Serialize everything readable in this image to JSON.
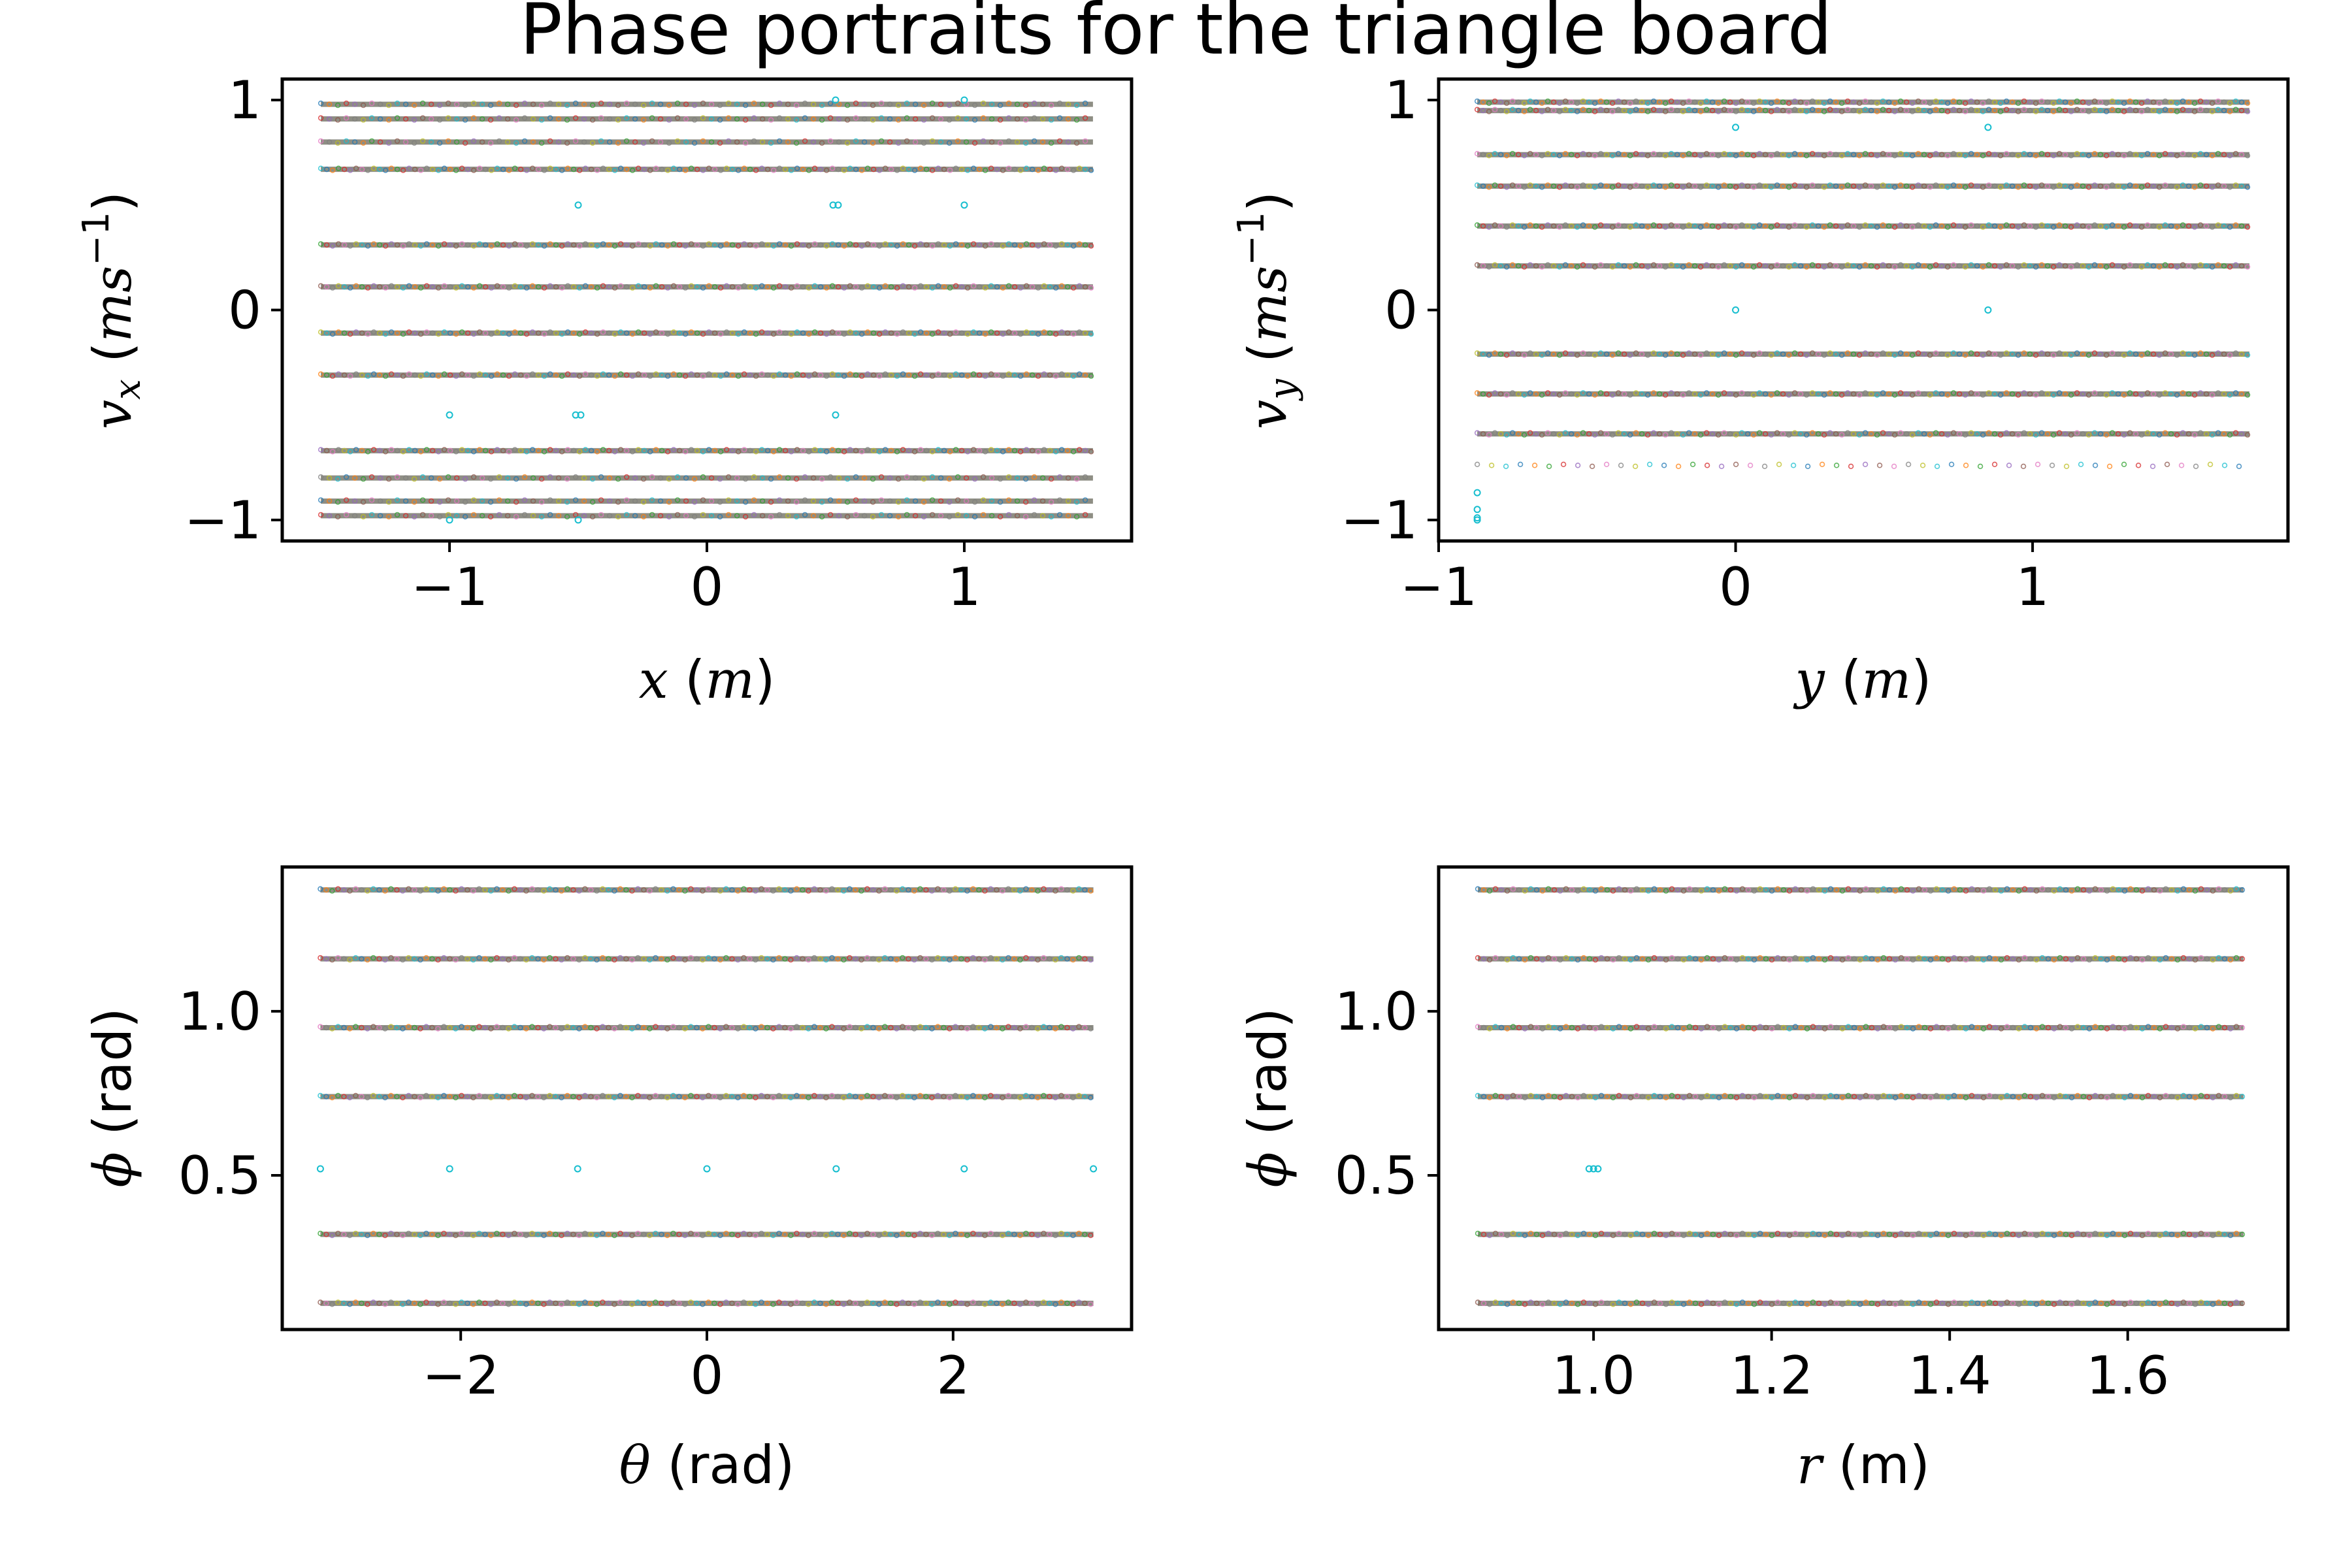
{
  "figure": {
    "title": "Phase portraits for the triangle board"
  },
  "colors": {
    "frame": "#000000",
    "band": "#7a7a6e",
    "band_colors": [
      "#1f77b4",
      "#ff7f0e",
      "#2ca02c",
      "#d62728",
      "#9467bd",
      "#8c564b",
      "#e377c2",
      "#7f7f7f",
      "#bcbd22",
      "#17becf"
    ],
    "outlier": "#17becf"
  },
  "chart_data": [
    {
      "id": "vx-vs-x",
      "type": "scatter",
      "title": "",
      "xlabel": "x (m)",
      "ylabel": "v_x (ms^-1)",
      "xlim": [
        -1.65,
        1.65
      ],
      "ylim": [
        -1.1,
        1.1
      ],
      "xticks": [
        -1,
        0,
        1
      ],
      "xtick_labels": [
        "−1",
        "0",
        "1"
      ],
      "yticks": [
        -1,
        0,
        1
      ],
      "ytick_labels": [
        "−1",
        "0",
        "1"
      ],
      "grid": false,
      "band_x_range": [
        -1.5,
        1.5
      ],
      "bands": [
        {
          "y": 0.98,
          "density": "mixed"
        },
        {
          "y": 0.91,
          "density": "mixed"
        },
        {
          "y": 0.8,
          "density": "mixed"
        },
        {
          "y": 0.67,
          "density": "dense"
        },
        {
          "y": 0.31,
          "density": "dense"
        },
        {
          "y": 0.11,
          "density": "dense"
        },
        {
          "y": -0.11,
          "density": "dense"
        },
        {
          "y": -0.31,
          "density": "dense"
        },
        {
          "y": -0.67,
          "density": "dense"
        },
        {
          "y": -0.8,
          "density": "mixed"
        },
        {
          "y": -0.91,
          "density": "mixed"
        },
        {
          "y": -0.98,
          "density": "mixed"
        }
      ],
      "outliers": [
        {
          "x": 0.5,
          "y": 1.0
        },
        {
          "x": 1.0,
          "y": 1.0
        },
        {
          "x": -0.5,
          "y": 0.5
        },
        {
          "x": 0.49,
          "y": 0.5
        },
        {
          "x": 0.51,
          "y": 0.5
        },
        {
          "x": 1.0,
          "y": 0.5
        },
        {
          "x": -1.0,
          "y": -0.5
        },
        {
          "x": -0.51,
          "y": -0.5
        },
        {
          "x": -0.49,
          "y": -0.5
        },
        {
          "x": 0.5,
          "y": -0.5
        },
        {
          "x": -1.0,
          "y": -1.0
        },
        {
          "x": -0.5,
          "y": -1.0
        }
      ]
    },
    {
      "id": "vy-vs-y",
      "type": "scatter",
      "title": "",
      "xlabel": "y (m)",
      "ylabel": "v_y (ms^-1)",
      "xlim": [
        -1.0,
        1.86
      ],
      "ylim": [
        -1.1,
        1.1
      ],
      "xticks": [
        -1,
        0,
        1
      ],
      "xtick_labels": [
        "−1",
        "0",
        "1"
      ],
      "yticks": [
        -1,
        0,
        1
      ],
      "ytick_labels": [
        "−1",
        "0",
        "1"
      ],
      "grid": false,
      "band_x_range": [
        -0.87,
        1.73
      ],
      "bands": [
        {
          "y": 0.99,
          "density": "dense"
        },
        {
          "y": 0.95,
          "density": "dense"
        },
        {
          "y": 0.74,
          "density": "dense"
        },
        {
          "y": 0.59,
          "density": "dense"
        },
        {
          "y": 0.4,
          "density": "dense"
        },
        {
          "y": 0.21,
          "density": "dense"
        },
        {
          "y": -0.21,
          "density": "dense"
        },
        {
          "y": -0.4,
          "density": "dense"
        },
        {
          "y": -0.59,
          "density": "dense"
        },
        {
          "y": -0.74,
          "density": "sparse"
        }
      ],
      "outliers": [
        {
          "x": 0.0,
          "y": 0.87
        },
        {
          "x": 0.85,
          "y": 0.87
        },
        {
          "x": 0.0,
          "y": 0.0
        },
        {
          "x": 0.85,
          "y": 0.0
        },
        {
          "x": -0.87,
          "y": -0.87
        },
        {
          "x": -0.87,
          "y": -0.95
        },
        {
          "x": -0.87,
          "y": -0.99
        },
        {
          "x": -0.87,
          "y": -1.0
        }
      ]
    },
    {
      "id": "phi-vs-theta",
      "type": "scatter",
      "title": "",
      "xlabel": "θ (rad)",
      "ylabel": "ϕ (rad)",
      "xlim": [
        -3.45,
        3.45
      ],
      "ylim": [
        0.03,
        1.44
      ],
      "xticks": [
        -2,
        0,
        2
      ],
      "xtick_labels": [
        "−2",
        "0",
        "2"
      ],
      "yticks": [
        0.5,
        1.0
      ],
      "ytick_labels": [
        "0.5",
        "1.0"
      ],
      "grid": false,
      "band_x_range": [
        -3.14,
        3.14
      ],
      "bands": [
        {
          "y": 1.37,
          "density": "dense"
        },
        {
          "y": 1.16,
          "density": "dense"
        },
        {
          "y": 0.95,
          "density": "dense"
        },
        {
          "y": 0.74,
          "density": "dense"
        },
        {
          "y": 0.32,
          "density": "dense"
        },
        {
          "y": 0.11,
          "density": "dense"
        }
      ],
      "outliers": [
        {
          "x": -3.14,
          "y": 0.52
        },
        {
          "x": -2.09,
          "y": 0.52
        },
        {
          "x": -1.05,
          "y": 0.52
        },
        {
          "x": 0.0,
          "y": 0.52
        },
        {
          "x": 1.05,
          "y": 0.52
        },
        {
          "x": 2.09,
          "y": 0.52
        },
        {
          "x": 3.14,
          "y": 0.52
        }
      ]
    },
    {
      "id": "phi-vs-r",
      "type": "scatter",
      "title": "",
      "xlabel": "r (m)",
      "ylabel": "ϕ (rad)",
      "xlim": [
        0.826,
        1.78
      ],
      "ylim": [
        0.03,
        1.44
      ],
      "xticks": [
        1.0,
        1.2,
        1.4,
        1.6
      ],
      "xtick_labels": [
        "1.0",
        "1.2",
        "1.4",
        "1.6"
      ],
      "yticks": [
        0.5,
        1.0
      ],
      "ytick_labels": [
        "0.5",
        "1.0"
      ],
      "grid": false,
      "band_x_range": [
        0.87,
        1.73
      ],
      "bands": [
        {
          "y": 1.37,
          "density": "dense"
        },
        {
          "y": 1.16,
          "density": "dense"
        },
        {
          "y": 0.95,
          "density": "dense"
        },
        {
          "y": 0.74,
          "density": "dense"
        },
        {
          "y": 0.32,
          "density": "dense"
        },
        {
          "y": 0.11,
          "density": "dense"
        }
      ],
      "outliers": [
        {
          "x": 0.995,
          "y": 0.52
        },
        {
          "x": 1.0,
          "y": 0.52
        },
        {
          "x": 1.005,
          "y": 0.52
        }
      ]
    }
  ]
}
